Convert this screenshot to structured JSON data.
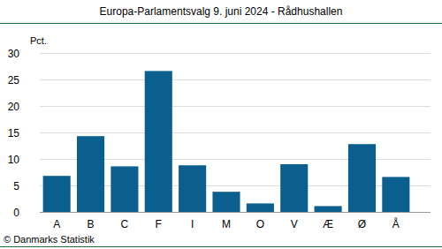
{
  "chart_data": {
    "type": "bar",
    "title": "Europa-Parlamentsvalg 9. juni 2024 - Rådhushallen",
    "y_label": "Pct.",
    "categories": [
      "A",
      "B",
      "C",
      "F",
      "I",
      "M",
      "O",
      "V",
      "Æ",
      "Ø",
      "Å"
    ],
    "values": [
      6.8,
      14.3,
      8.6,
      26.6,
      8.8,
      3.8,
      1.6,
      9.0,
      1.1,
      12.8,
      6.6
    ],
    "color": "#0a5f8e",
    "ylim": [
      0,
      30
    ],
    "yticks": [
      0,
      5,
      10,
      15,
      20,
      25,
      30
    ],
    "grid": true,
    "annotations": [
      "© Danmarks Statistik"
    ]
  }
}
